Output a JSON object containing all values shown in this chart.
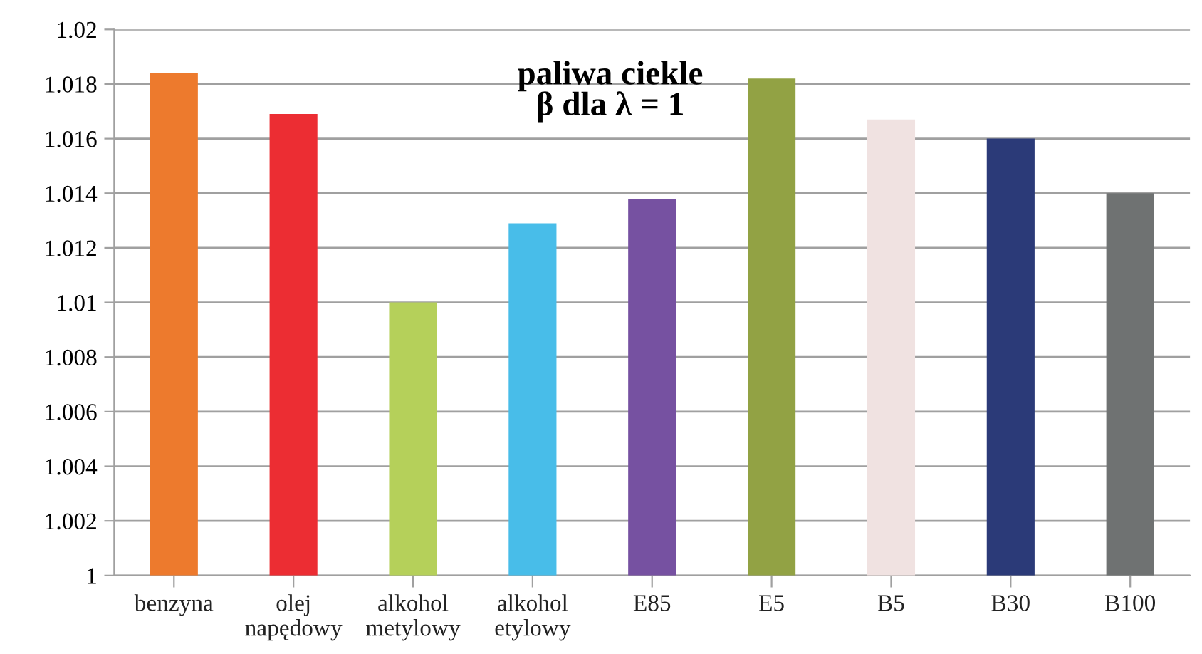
{
  "chart_data": {
    "type": "bar",
    "title": "paliwa ciekle\nβ dla λ = 1",
    "categories": [
      "benzyna",
      "olej\nnapędowy",
      "alkohol\nmetylowy",
      "alkohol\netylowy",
      "E85",
      "E5",
      "B5",
      "B30",
      "B100"
    ],
    "values": [
      1.0184,
      1.0169,
      1.01,
      1.0129,
      1.0138,
      1.0182,
      1.0167,
      1.016,
      1.014
    ],
    "colors": [
      "#ed7a2d",
      "#ec2d33",
      "#b5d05a",
      "#48bde9",
      "#7651a1",
      "#92a244",
      "#f0e2e1",
      "#2b3a78",
      "#6f7272"
    ],
    "ylim": [
      1,
      1.02
    ],
    "yticks": [
      1,
      1.002,
      1.004,
      1.006,
      1.008,
      1.01,
      1.012,
      1.014,
      1.016,
      1.018,
      1.02
    ],
    "grid": "y"
  }
}
